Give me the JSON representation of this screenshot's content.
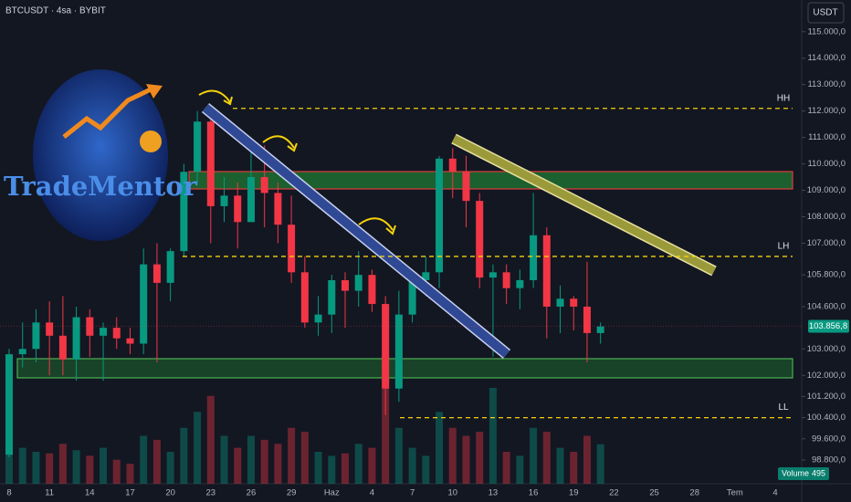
{
  "header": {
    "title": "BTCUSDT · 4sa · BYBIT",
    "currency_button": "USDT"
  },
  "logo": {
    "text": "TradeMentor"
  },
  "chart_data": {
    "type": "candlestick",
    "categories": [
      "8",
      null,
      null,
      "11",
      null,
      null,
      "14",
      null,
      null,
      "17",
      null,
      null,
      "20",
      null,
      null,
      "23",
      null,
      null,
      "26",
      null,
      null,
      "29",
      null,
      null,
      "Haz",
      null,
      null,
      "4",
      null,
      null,
      "7",
      null,
      null,
      "10",
      null,
      null,
      "13",
      null,
      null,
      "16",
      null,
      null,
      "19",
      null,
      null,
      "22",
      null,
      null,
      "25",
      null,
      null,
      "28",
      null,
      null,
      "Tem",
      null,
      null,
      "4"
    ],
    "open": [
      99000,
      102800,
      103000,
      104000,
      103500,
      102600,
      104200,
      103500,
      103800,
      103400,
      103200,
      106200,
      105500,
      106700,
      109700,
      111600,
      108400,
      108800,
      107800,
      109500,
      108900,
      107700,
      105900,
      104000,
      104300,
      105600,
      105200,
      105800,
      104700,
      101500,
      104300,
      105600,
      105900,
      110200,
      109700,
      108600,
      105700,
      105900,
      105300,
      105600,
      107300,
      104600,
      104900,
      104600,
      103600,
      null,
      null,
      null,
      null,
      null,
      null,
      null,
      null,
      null,
      null,
      null,
      null,
      null
    ],
    "high": [
      103000,
      104000,
      104500,
      104800,
      105000,
      104600,
      104500,
      104000,
      104200,
      103800,
      106800,
      107000,
      106800,
      110000,
      112000,
      111900,
      109500,
      109300,
      110500,
      110700,
      109300,
      108800,
      106500,
      105000,
      105800,
      105900,
      106700,
      106000,
      105000,
      105200,
      105800,
      106500,
      110300,
      110600,
      110300,
      108900,
      106200,
      106200,
      106000,
      108900,
      107600,
      105400,
      105000,
      106300,
      104000,
      null,
      null,
      null,
      null,
      null,
      null,
      null,
      null,
      null,
      null,
      null,
      null,
      null
    ],
    "low": [
      98900,
      102300,
      102500,
      102000,
      102000,
      101800,
      102700,
      101800,
      103000,
      102800,
      102800,
      102500,
      104800,
      106500,
      109300,
      107000,
      107800,
      106800,
      107800,
      107600,
      107000,
      105500,
      103800,
      103500,
      103600,
      103800,
      104600,
      104400,
      100500,
      101000,
      104000,
      105000,
      105300,
      108700,
      107600,
      105300,
      102700,
      104700,
      104500,
      105300,
      103400,
      103600,
      103700,
      102500,
      103200,
      null,
      null,
      null,
      null,
      null,
      null,
      null,
      null,
      null,
      null,
      null,
      null,
      null
    ],
    "close": [
      102800,
      103000,
      104000,
      103500,
      102600,
      104200,
      103500,
      103800,
      103400,
      103200,
      106200,
      105500,
      106700,
      109700,
      111600,
      108400,
      108800,
      107800,
      109500,
      108900,
      107700,
      105900,
      104000,
      104300,
      105600,
      105200,
      105800,
      104700,
      101500,
      104300,
      105600,
      105900,
      110200,
      109700,
      108600,
      105700,
      105900,
      105300,
      105600,
      107300,
      104600,
      104900,
      104600,
      103600,
      103850,
      null,
      null,
      null,
      null,
      null,
      null,
      null,
      null,
      null,
      null,
      null,
      null,
      null
    ],
    "volume": [
      700,
      450,
      400,
      380,
      500,
      420,
      350,
      450,
      300,
      250,
      600,
      550,
      400,
      700,
      900,
      1100,
      600,
      450,
      600,
      550,
      500,
      700,
      650,
      400,
      350,
      380,
      500,
      450,
      1300,
      700,
      450,
      350,
      900,
      700,
      600,
      650,
      1200,
      400,
      350,
      700,
      650,
      450,
      400,
      600,
      495,
      null,
      null,
      null,
      null,
      null,
      null,
      null,
      null,
      null,
      null,
      null,
      null,
      null
    ],
    "volume_label": "Volume",
    "volume_lim": [
      0,
      1600
    ],
    "up_color": "#089981",
    "down_color": "#f23645",
    "ylim": [
      97900,
      116200
    ],
    "yticks": [
      {
        "value": 115000,
        "label": "115.000,0"
      },
      {
        "value": 114000,
        "label": "114.000,0"
      },
      {
        "value": 113000,
        "label": "113.000,0"
      },
      {
        "value": 112000,
        "label": "112.000,0"
      },
      {
        "value": 111000,
        "label": "111.000,0"
      },
      {
        "value": 110000,
        "label": "110.000,0"
      },
      {
        "value": 109000,
        "label": "109.000,0"
      },
      {
        "value": 108000,
        "label": "108.000,0"
      },
      {
        "value": 107000,
        "label": "107.000,0"
      },
      {
        "value": 105800,
        "label": "105.800,0"
      },
      {
        "value": 104600,
        "label": "104.600,0"
      },
      {
        "value": 103000,
        "label": "103.000,0"
      },
      {
        "value": 102000,
        "label": "102.000,0"
      },
      {
        "value": 101200,
        "label": "101.200,0"
      },
      {
        "value": 100400,
        "label": "100.400,0"
      },
      {
        "value": 99600,
        "label": "99.600,0"
      },
      {
        "value": 98800,
        "label": "98.800,0"
      }
    ],
    "last_price": {
      "value": 103856.8,
      "label": "103.856,8"
    },
    "levels": [
      {
        "label": "HH",
        "value": 112100
      },
      {
        "label": "LH",
        "value": 106500
      },
      {
        "label": "LL",
        "value": 100400
      }
    ]
  }
}
